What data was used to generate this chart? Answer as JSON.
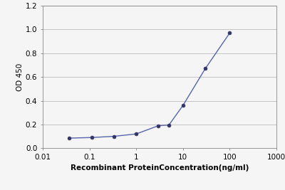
{
  "x_values": [
    0.037,
    0.111,
    0.333,
    1.0,
    3.0,
    5.0,
    10.0,
    30.0,
    100.0
  ],
  "y_values": [
    0.085,
    0.09,
    0.1,
    0.12,
    0.19,
    0.195,
    0.36,
    0.67,
    0.97
  ],
  "xlim": [
    0.01,
    1000
  ],
  "ylim": [
    0,
    1.2
  ],
  "xlabel": "Recombinant ProteinConcentration(ng/ml)",
  "ylabel": "OD 450",
  "yticks": [
    0,
    0.2,
    0.4,
    0.6,
    0.8,
    1.0,
    1.2
  ],
  "xtick_labels": [
    "0.01",
    "0.1",
    "1",
    "10",
    "100",
    "1000"
  ],
  "xtick_values": [
    0.01,
    0.1,
    1,
    10,
    100,
    1000
  ],
  "line_color": "#5566aa",
  "marker_color": "#333366",
  "background_color": "#f5f5f5",
  "plot_bg_color": "#f5f5f5",
  "grid_color": "#bbbbbb",
  "label_fontsize": 7.5,
  "tick_fontsize": 7.5,
  "ylabel_fontsize": 7.5
}
